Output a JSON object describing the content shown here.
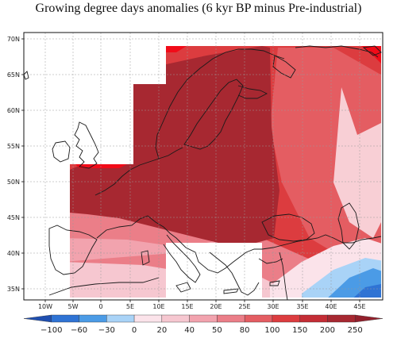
{
  "title": "Growing degree days anomalies (6 kyr BP minus Pre-industrial)",
  "lat_labels": [
    "70N",
    "65N",
    "60N",
    "55N",
    "50N",
    "45N",
    "40N",
    "35N"
  ],
  "lon_labels": [
    "10W",
    "5W",
    "0",
    "5E",
    "10E",
    "15E",
    "20E",
    "25E",
    "30E",
    "35E",
    "40E",
    "45E"
  ],
  "colorbar": {
    "labels": [
      "−100",
      "−60",
      "−30",
      "0",
      "20",
      "40",
      "50",
      "80",
      "100",
      "150",
      "200",
      "250"
    ],
    "colors": [
      "#1f4fb0",
      "#2f73d4",
      "#4b9be6",
      "#a9d3f7",
      "#fbe3ea",
      "#f6c7d0",
      "#f2a3ae",
      "#eb7e88",
      "#e45d62",
      "#dc3c3f",
      "#c42d35",
      "#a72831",
      "#93202c"
    ]
  },
  "colors": {
    "very_high": "#a72831",
    "high": "#dc3c3f",
    "med_high": "#e45d62",
    "medium": "#eb7e88",
    "low": "#f2a3ae",
    "lower": "#f6c7d0",
    "lowest": "#fbe3ea",
    "neg_light": "#a9d3f7",
    "neg_mid": "#4b9be6",
    "neg_dark": "#2f73d4",
    "peak": "#f10b18"
  }
}
